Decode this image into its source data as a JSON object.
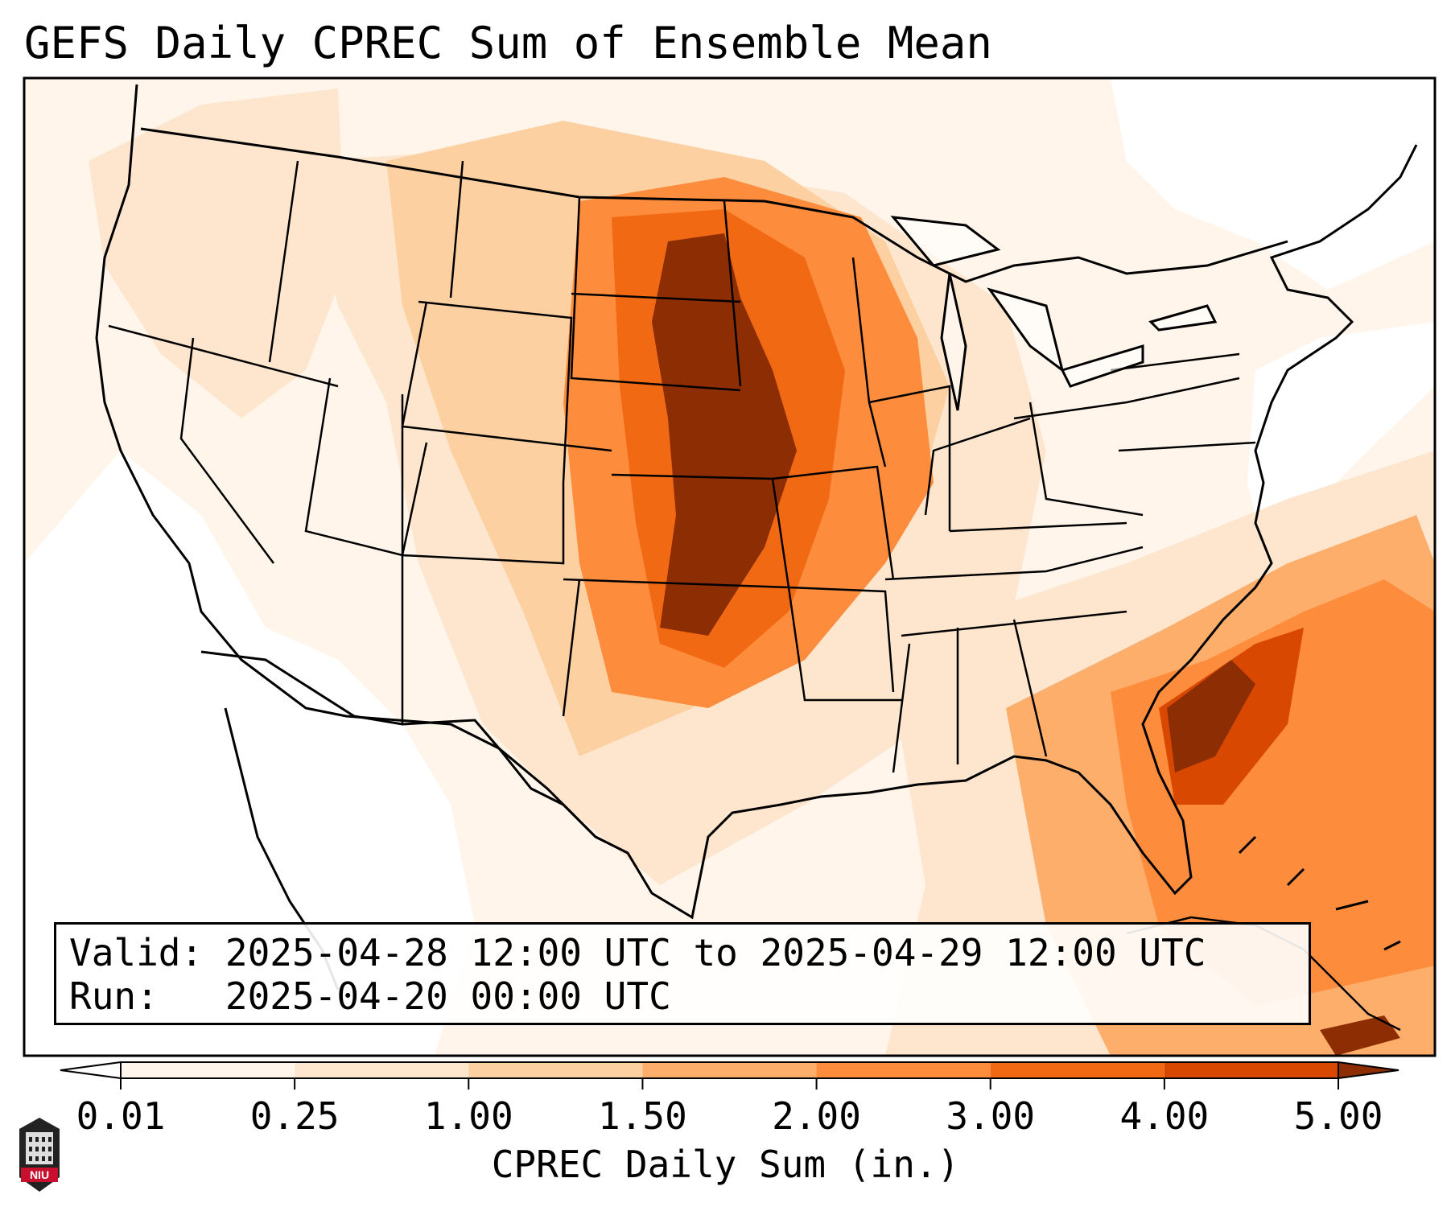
{
  "title": "GEFS Daily CPREC Sum of Ensemble Mean",
  "valid_label": "Valid:",
  "valid_text": "2025-04-28 12:00 UTC to 2025-04-29 12:00 UTC",
  "run_label": "Run:",
  "run_text": "2025-04-20 00:00 UTC",
  "colorbar": {
    "label": "CPREC Daily Sum (in.)",
    "ticks": [
      "0.01",
      "0.25",
      "1.00",
      "1.50",
      "2.00",
      "3.00",
      "4.00",
      "5.00"
    ],
    "colors": [
      "#fff5eb",
      "#fee6ce",
      "#fdd0a2",
      "#fdae6b",
      "#fd8d3c",
      "#f16913",
      "#d94801",
      "#8c2d04"
    ],
    "under_color": "#ffffff",
    "over_color": "#7f2704"
  },
  "logo_text": "NIU",
  "map": {
    "region": "CONUS",
    "heavy_precip_areas": [
      "Dakotas",
      "Nebraska",
      "Kansas",
      "Oklahoma",
      "Iowa",
      "Missouri",
      "Southeast Atlantic coast"
    ]
  }
}
